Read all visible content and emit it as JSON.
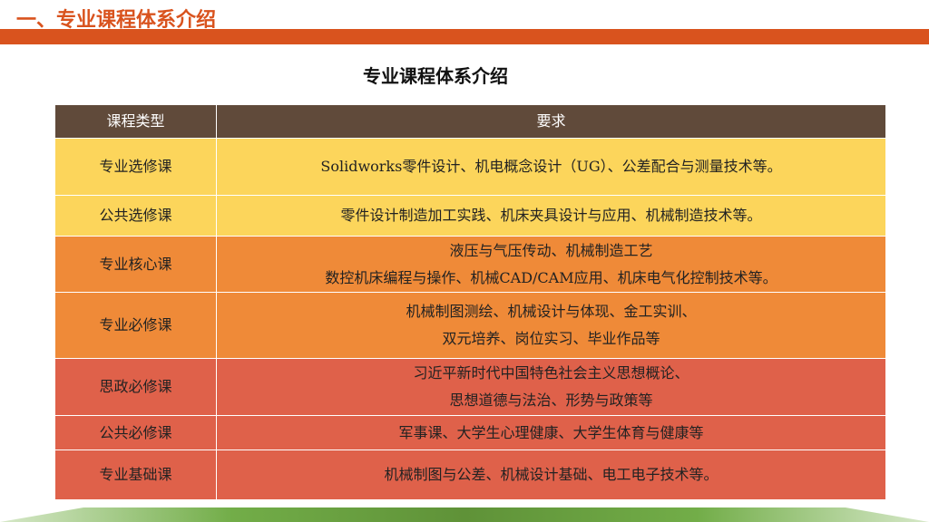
{
  "section_heading": "一、专业课程体系介绍",
  "title": "专业课程体系介绍",
  "table": {
    "headers": [
      "课程类型",
      "要求"
    ],
    "rows": [
      {
        "type": "专业选修课",
        "lines": [
          "Solidworks零件设计、机电概念设计（UG）、公差配合与测量技术等。"
        ],
        "color": "#fcd55b"
      },
      {
        "type": "公共选修课",
        "lines": [
          "零件设计制造加工实践、机床夹具设计与应用、机械制造技术等。"
        ],
        "color": "#fcd55b"
      },
      {
        "type": "专业核心课",
        "lines": [
          "液压与气压传动、机械制造工艺",
          "数控机床编程与操作、机械CAD/CAM应用、机床电气化控制技术等。"
        ],
        "color": "#ef8a38"
      },
      {
        "type": "专业必修课",
        "lines": [
          "机械制图测绘、机械设计与体现、金工实训、",
          "双元培养、岗位实习、毕业作品等"
        ],
        "color": "#ef8a38"
      },
      {
        "type": "思政必修课",
        "lines": [
          "习近平新时代中国特色社会主义思想概论、",
          "思想道德与法治、形势与政策等"
        ],
        "color": "#df614a"
      },
      {
        "type": "公共必修课",
        "lines": [
          "军事课、大学生心理健康、大学生体育与健康等"
        ],
        "color": "#df614a"
      },
      {
        "type": "专业基础课",
        "lines": [
          "机械制图与公差、机械设计基础、电工电子技术等。"
        ],
        "color": "#df614a"
      }
    ]
  }
}
